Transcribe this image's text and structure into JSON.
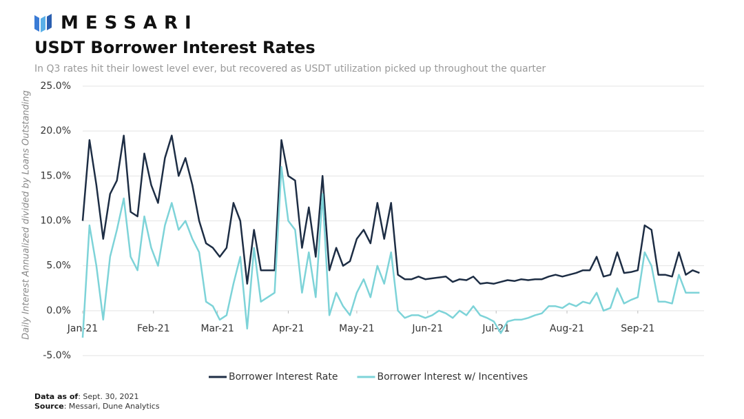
{
  "brand": "MESSARI",
  "chart_data": {
    "type": "line",
    "title": "USDT Borrower Interest Rates",
    "subtitle": "In Q3 rates hit their lowest level ever, but recovered as USDT utilization picked up throughout the quarter",
    "y_label": "Daily Interest Annualized divided by Loans Outstanding",
    "x": [
      0,
      3,
      6,
      9,
      12,
      15,
      18,
      21,
      24,
      27,
      30,
      33,
      36,
      39,
      42,
      45,
      48,
      51,
      54,
      57,
      60,
      63,
      66,
      69,
      72,
      75,
      78,
      81,
      84,
      87,
      90,
      93,
      96,
      99,
      102,
      105,
      108,
      111,
      114,
      117,
      120,
      123,
      126,
      129,
      132,
      135,
      138,
      141,
      144,
      147,
      150,
      153,
      156,
      159,
      162,
      165,
      168,
      171,
      174,
      177,
      180,
      183,
      186,
      189,
      192,
      195,
      198,
      201,
      204,
      207,
      210,
      213,
      216,
      219,
      222,
      225,
      228,
      231,
      234,
      237,
      240,
      243,
      246,
      249,
      252,
      255,
      258,
      261,
      264,
      267,
      270
    ],
    "xlim": [
      0,
      272
    ],
    "xticks": [
      {
        "value": 0,
        "label": "Jan-21"
      },
      {
        "value": 31,
        "label": "Feb-21"
      },
      {
        "value": 59,
        "label": "Mar-21"
      },
      {
        "value": 90,
        "label": "Apr-21"
      },
      {
        "value": 120,
        "label": "May-21"
      },
      {
        "value": 151,
        "label": "Jun-21"
      },
      {
        "value": 181,
        "label": "Jul-21"
      },
      {
        "value": 212,
        "label": "Aug-21"
      },
      {
        "value": 243,
        "label": "Sep-21"
      }
    ],
    "ylim": [
      -5,
      25
    ],
    "yticks": [
      {
        "value": -5,
        "label": "-5.0%"
      },
      {
        "value": 0,
        "label": "0.0%"
      },
      {
        "value": 5,
        "label": "5.0%"
      },
      {
        "value": 10,
        "label": "10.0%"
      },
      {
        "value": 15,
        "label": "15.0%"
      },
      {
        "value": 20,
        "label": "20.0%"
      },
      {
        "value": 25,
        "label": "25.0%"
      }
    ],
    "grid": true,
    "series": [
      {
        "name": "Borrower Interest Rate",
        "color": "#1d2d44",
        "values": [
          10,
          19,
          14,
          8,
          13,
          14.5,
          19.5,
          11,
          10.5,
          17.5,
          14,
          12,
          17,
          19.5,
          15,
          17,
          14,
          10,
          7.5,
          7,
          6,
          7,
          12,
          10,
          3,
          9,
          4.5,
          4.5,
          4.5,
          19,
          15,
          14.5,
          7,
          11.5,
          6,
          15,
          4.5,
          7,
          5,
          5.5,
          8,
          9,
          7.5,
          12,
          8,
          12,
          4,
          3.5,
          3.5,
          3.8,
          3.5,
          3.6,
          3.7,
          3.8,
          3.2,
          3.5,
          3.4,
          3.8,
          3,
          3.1,
          3,
          3.2,
          3.4,
          3.3,
          3.5,
          3.4,
          3.5,
          3.5,
          3.8,
          4,
          3.8,
          4,
          4.2,
          4.5,
          4.5,
          6,
          3.8,
          4,
          6.5,
          4.2,
          4.3,
          4.5,
          9.5,
          9,
          4,
          4,
          3.8,
          6.5,
          4,
          4.5,
          4.2
        ]
      },
      {
        "name": "Borrower Interest w/ Incentives",
        "color": "#7dd3d8",
        "values": [
          -3,
          9.5,
          5,
          -1,
          6,
          9,
          12.5,
          6,
          4.5,
          10.5,
          7,
          5,
          9.5,
          12,
          9,
          10,
          8,
          6.5,
          1,
          0.5,
          -1,
          -0.5,
          3,
          6,
          -2,
          7,
          1,
          1.5,
          2,
          16,
          10,
          9,
          2,
          6.5,
          1.5,
          13,
          -0.5,
          2,
          0.5,
          -0.5,
          2,
          3.5,
          1.5,
          5,
          3,
          6.5,
          0,
          -0.8,
          -0.5,
          -0.5,
          -0.8,
          -0.5,
          0,
          -0.3,
          -0.8,
          0,
          -0.5,
          0.5,
          -0.5,
          -0.8,
          -1.2,
          -2.5,
          -1.2,
          -1,
          -1,
          -0.8,
          -0.5,
          -0.3,
          0.5,
          0.5,
          0.3,
          0.8,
          0.5,
          1,
          0.8,
          2,
          0,
          0.3,
          2.5,
          0.8,
          1.2,
          1.5,
          6.5,
          5,
          1,
          1,
          0.8,
          4,
          2,
          2,
          2
        ]
      }
    ],
    "legend": "bottom",
    "footnotes": [
      {
        "label": "Data as of",
        "text": ": Sept. 30, 2021"
      },
      {
        "label": "Source",
        "text": ": Messari, Dune Analytics"
      }
    ]
  }
}
